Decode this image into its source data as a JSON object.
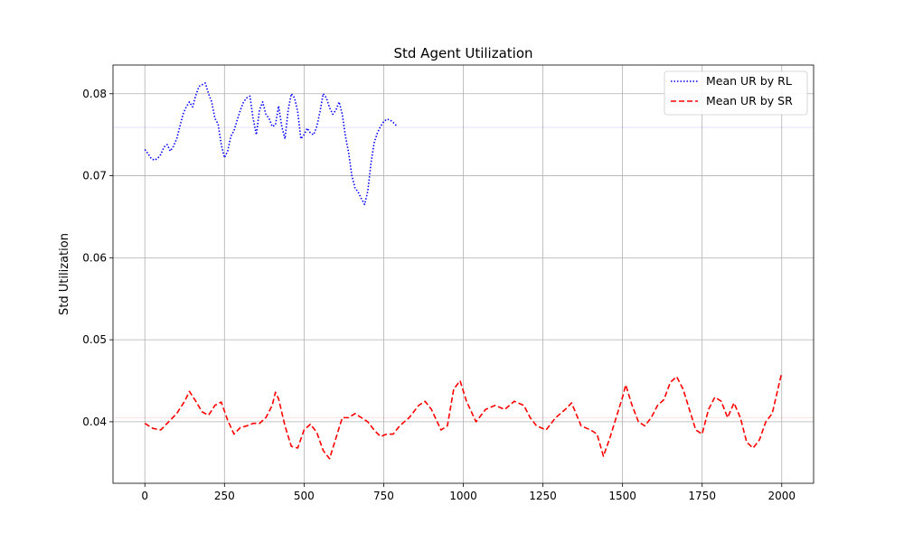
{
  "chart_data": {
    "type": "line",
    "title": "Std Agent Utilization",
    "xlabel": "",
    "ylabel": "Std Utilization",
    "xlim": [
      -100,
      2100
    ],
    "ylim": [
      0.0325,
      0.0835
    ],
    "xticks": [
      0,
      250,
      500,
      750,
      1000,
      1250,
      1500,
      1750,
      2000
    ],
    "yticks": [
      0.04,
      0.05,
      0.06,
      0.07,
      0.08
    ],
    "grid": true,
    "legend_position": "top-right",
    "reference_lines": [
      {
        "y": 0.0759,
        "color": "#0000ff"
      },
      {
        "y": 0.0405,
        "color": "#ff0000"
      }
    ],
    "series": [
      {
        "name": "Mean UR by RL",
        "color": "#0000ff",
        "linestyle": "dotted",
        "x": [
          0,
          10,
          20,
          30,
          40,
          50,
          60,
          70,
          80,
          90,
          100,
          110,
          120,
          130,
          140,
          150,
          160,
          170,
          180,
          190,
          200,
          210,
          220,
          230,
          240,
          250,
          260,
          270,
          280,
          290,
          300,
          310,
          320,
          330,
          340,
          350,
          360,
          370,
          380,
          390,
          400,
          410,
          420,
          430,
          440,
          450,
          460,
          470,
          480,
          490,
          500,
          510,
          520,
          530,
          540,
          550,
          560,
          570,
          580,
          590,
          600,
          610,
          620,
          630,
          640,
          650,
          660,
          670,
          680,
          690,
          700,
          710,
          720,
          730,
          740,
          750,
          760,
          770,
          780,
          790
        ],
        "y": [
          0.0732,
          0.0727,
          0.0721,
          0.0719,
          0.0721,
          0.0726,
          0.0735,
          0.0738,
          0.073,
          0.0736,
          0.0745,
          0.076,
          0.0775,
          0.0784,
          0.079,
          0.0784,
          0.0798,
          0.0809,
          0.0811,
          0.0813,
          0.08,
          0.079,
          0.077,
          0.0763,
          0.0738,
          0.0722,
          0.073,
          0.0748,
          0.0755,
          0.0768,
          0.078,
          0.079,
          0.0795,
          0.0797,
          0.077,
          0.075,
          0.078,
          0.079,
          0.0775,
          0.077,
          0.076,
          0.0762,
          0.0785,
          0.076,
          0.0745,
          0.078,
          0.08,
          0.0795,
          0.0778,
          0.0745,
          0.075,
          0.0758,
          0.0752,
          0.075,
          0.076,
          0.0778,
          0.08,
          0.0795,
          0.0783,
          0.0775,
          0.078,
          0.079,
          0.0775,
          0.0748,
          0.0728,
          0.07,
          0.0685,
          0.068,
          0.0672,
          0.0665,
          0.0681,
          0.0715,
          0.074,
          0.0752,
          0.076,
          0.0766,
          0.0769,
          0.0768,
          0.0765,
          0.0761
        ]
      },
      {
        "name": "Mean UR by SR",
        "color": "#ff0000",
        "linestyle": "dashed",
        "x": [
          0,
          25,
          50,
          75,
          100,
          125,
          140,
          160,
          180,
          200,
          220,
          240,
          260,
          280,
          300,
          320,
          340,
          360,
          380,
          400,
          410,
          420,
          440,
          460,
          480,
          500,
          520,
          540,
          560,
          580,
          600,
          620,
          640,
          660,
          680,
          700,
          720,
          740,
          760,
          780,
          800,
          830,
          860,
          880,
          900,
          930,
          950,
          970,
          990,
          1010,
          1040,
          1070,
          1100,
          1130,
          1160,
          1190,
          1210,
          1230,
          1260,
          1290,
          1320,
          1340,
          1370,
          1400,
          1420,
          1440,
          1460,
          1480,
          1500,
          1510,
          1530,
          1550,
          1570,
          1590,
          1610,
          1630,
          1650,
          1670,
          1690,
          1710,
          1730,
          1750,
          1770,
          1790,
          1810,
          1830,
          1850,
          1870,
          1890,
          1910,
          1930,
          1950,
          1970,
          2000
        ],
        "y": [
          0.0398,
          0.0392,
          0.039,
          0.04,
          0.041,
          0.0425,
          0.0437,
          0.0425,
          0.0412,
          0.0408,
          0.042,
          0.0424,
          0.0402,
          0.0385,
          0.0393,
          0.0395,
          0.0398,
          0.0398,
          0.0405,
          0.042,
          0.0436,
          0.0428,
          0.0395,
          0.037,
          0.0368,
          0.039,
          0.0397,
          0.0387,
          0.0365,
          0.0355,
          0.038,
          0.0405,
          0.0405,
          0.041,
          0.0405,
          0.04,
          0.039,
          0.0382,
          0.0385,
          0.0385,
          0.0395,
          0.0405,
          0.042,
          0.0425,
          0.0415,
          0.039,
          0.0395,
          0.044,
          0.045,
          0.0425,
          0.04,
          0.0415,
          0.042,
          0.0415,
          0.0425,
          0.042,
          0.0405,
          0.0395,
          0.039,
          0.0405,
          0.0415,
          0.0423,
          0.0395,
          0.039,
          0.0385,
          0.0358,
          0.038,
          0.0405,
          0.043,
          0.0445,
          0.042,
          0.04,
          0.0395,
          0.0405,
          0.042,
          0.0427,
          0.0448,
          0.0455,
          0.044,
          0.0415,
          0.039,
          0.0385,
          0.0415,
          0.043,
          0.0425,
          0.0405,
          0.0423,
          0.0405,
          0.0375,
          0.0368,
          0.0378,
          0.04,
          0.041,
          0.046
        ]
      }
    ]
  }
}
